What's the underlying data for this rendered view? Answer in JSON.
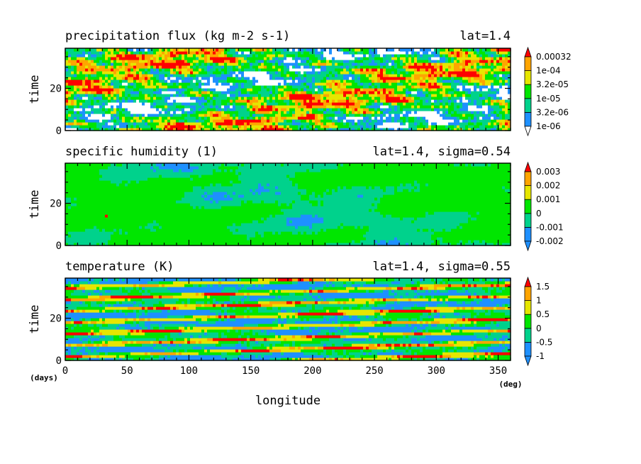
{
  "chart_data": [
    {
      "type": "heatmap",
      "title": "precipitation flux (kg m-2 s-1)",
      "annotation": "lat=1.4",
      "xlabel": "",
      "ylabel": "time",
      "xlim": [
        0,
        360
      ],
      "ylim": [
        0,
        39
      ],
      "yticks": [
        "0",
        "20"
      ],
      "levels": [
        "1e-06",
        "3.2e-06",
        "1e-05",
        "3.2e-05",
        "1e-04",
        "0.00032"
      ],
      "colors": [
        "#ffffff",
        "#1e90ff",
        "#00d28c",
        "#00e600",
        "#e6e600",
        "#ffa500",
        "#ff0000"
      ],
      "weights": [
        0.09,
        0.13,
        0.22,
        0.22,
        0.15,
        0.11,
        0.08
      ],
      "pattern": "slightly slanted streaks, noisy, scattered white gaps"
    },
    {
      "type": "heatmap",
      "title": "specific humidity (1)",
      "annotation": "lat=1.4, sigma=0.54",
      "xlabel": "",
      "ylabel": "time",
      "xlim": [
        0,
        360
      ],
      "ylim": [
        0,
        39
      ],
      "yticks": [
        "0",
        "20"
      ],
      "levels": [
        "-0.002",
        "-0.001",
        "0",
        "0.001",
        "0.002",
        "0.003"
      ],
      "colors": [
        "#1e90ff",
        "#1e90ff",
        "#00d28c",
        "#00e600",
        "#e6e600",
        "#ffa500",
        "#ff0000"
      ],
      "weights": [
        0.0,
        0.03,
        0.34,
        0.63,
        0.0,
        0.0,
        0.0
      ],
      "pattern": "mostly 0 to 0.001 with patches of -0.001 to 0"
    },
    {
      "type": "heatmap",
      "title": "temperature (K)",
      "annotation": "lat=1.4, sigma=0.55",
      "xlabel": "longitude",
      "ylabel": "time",
      "xunit": "(deg)",
      "yunit": "(days)",
      "xlim": [
        0,
        360
      ],
      "ylim": [
        0,
        39
      ],
      "xticks": [
        "0",
        "50",
        "100",
        "150",
        "200",
        "250",
        "300",
        "350"
      ],
      "yticks": [
        "0",
        "20"
      ],
      "levels": [
        "-1",
        "-0.5",
        "0",
        "0.5",
        "1",
        "1.5"
      ],
      "colors": [
        "#1e90ff",
        "#1e90ff",
        "#00d28c",
        "#00e600",
        "#e6e600",
        "#ffa500",
        "#ff0000"
      ],
      "weights": [
        0.0,
        0.24,
        0.26,
        0.2,
        0.16,
        0.08,
        0.06
      ],
      "pattern": "strong eastward-propagating slanted bands"
    }
  ]
}
